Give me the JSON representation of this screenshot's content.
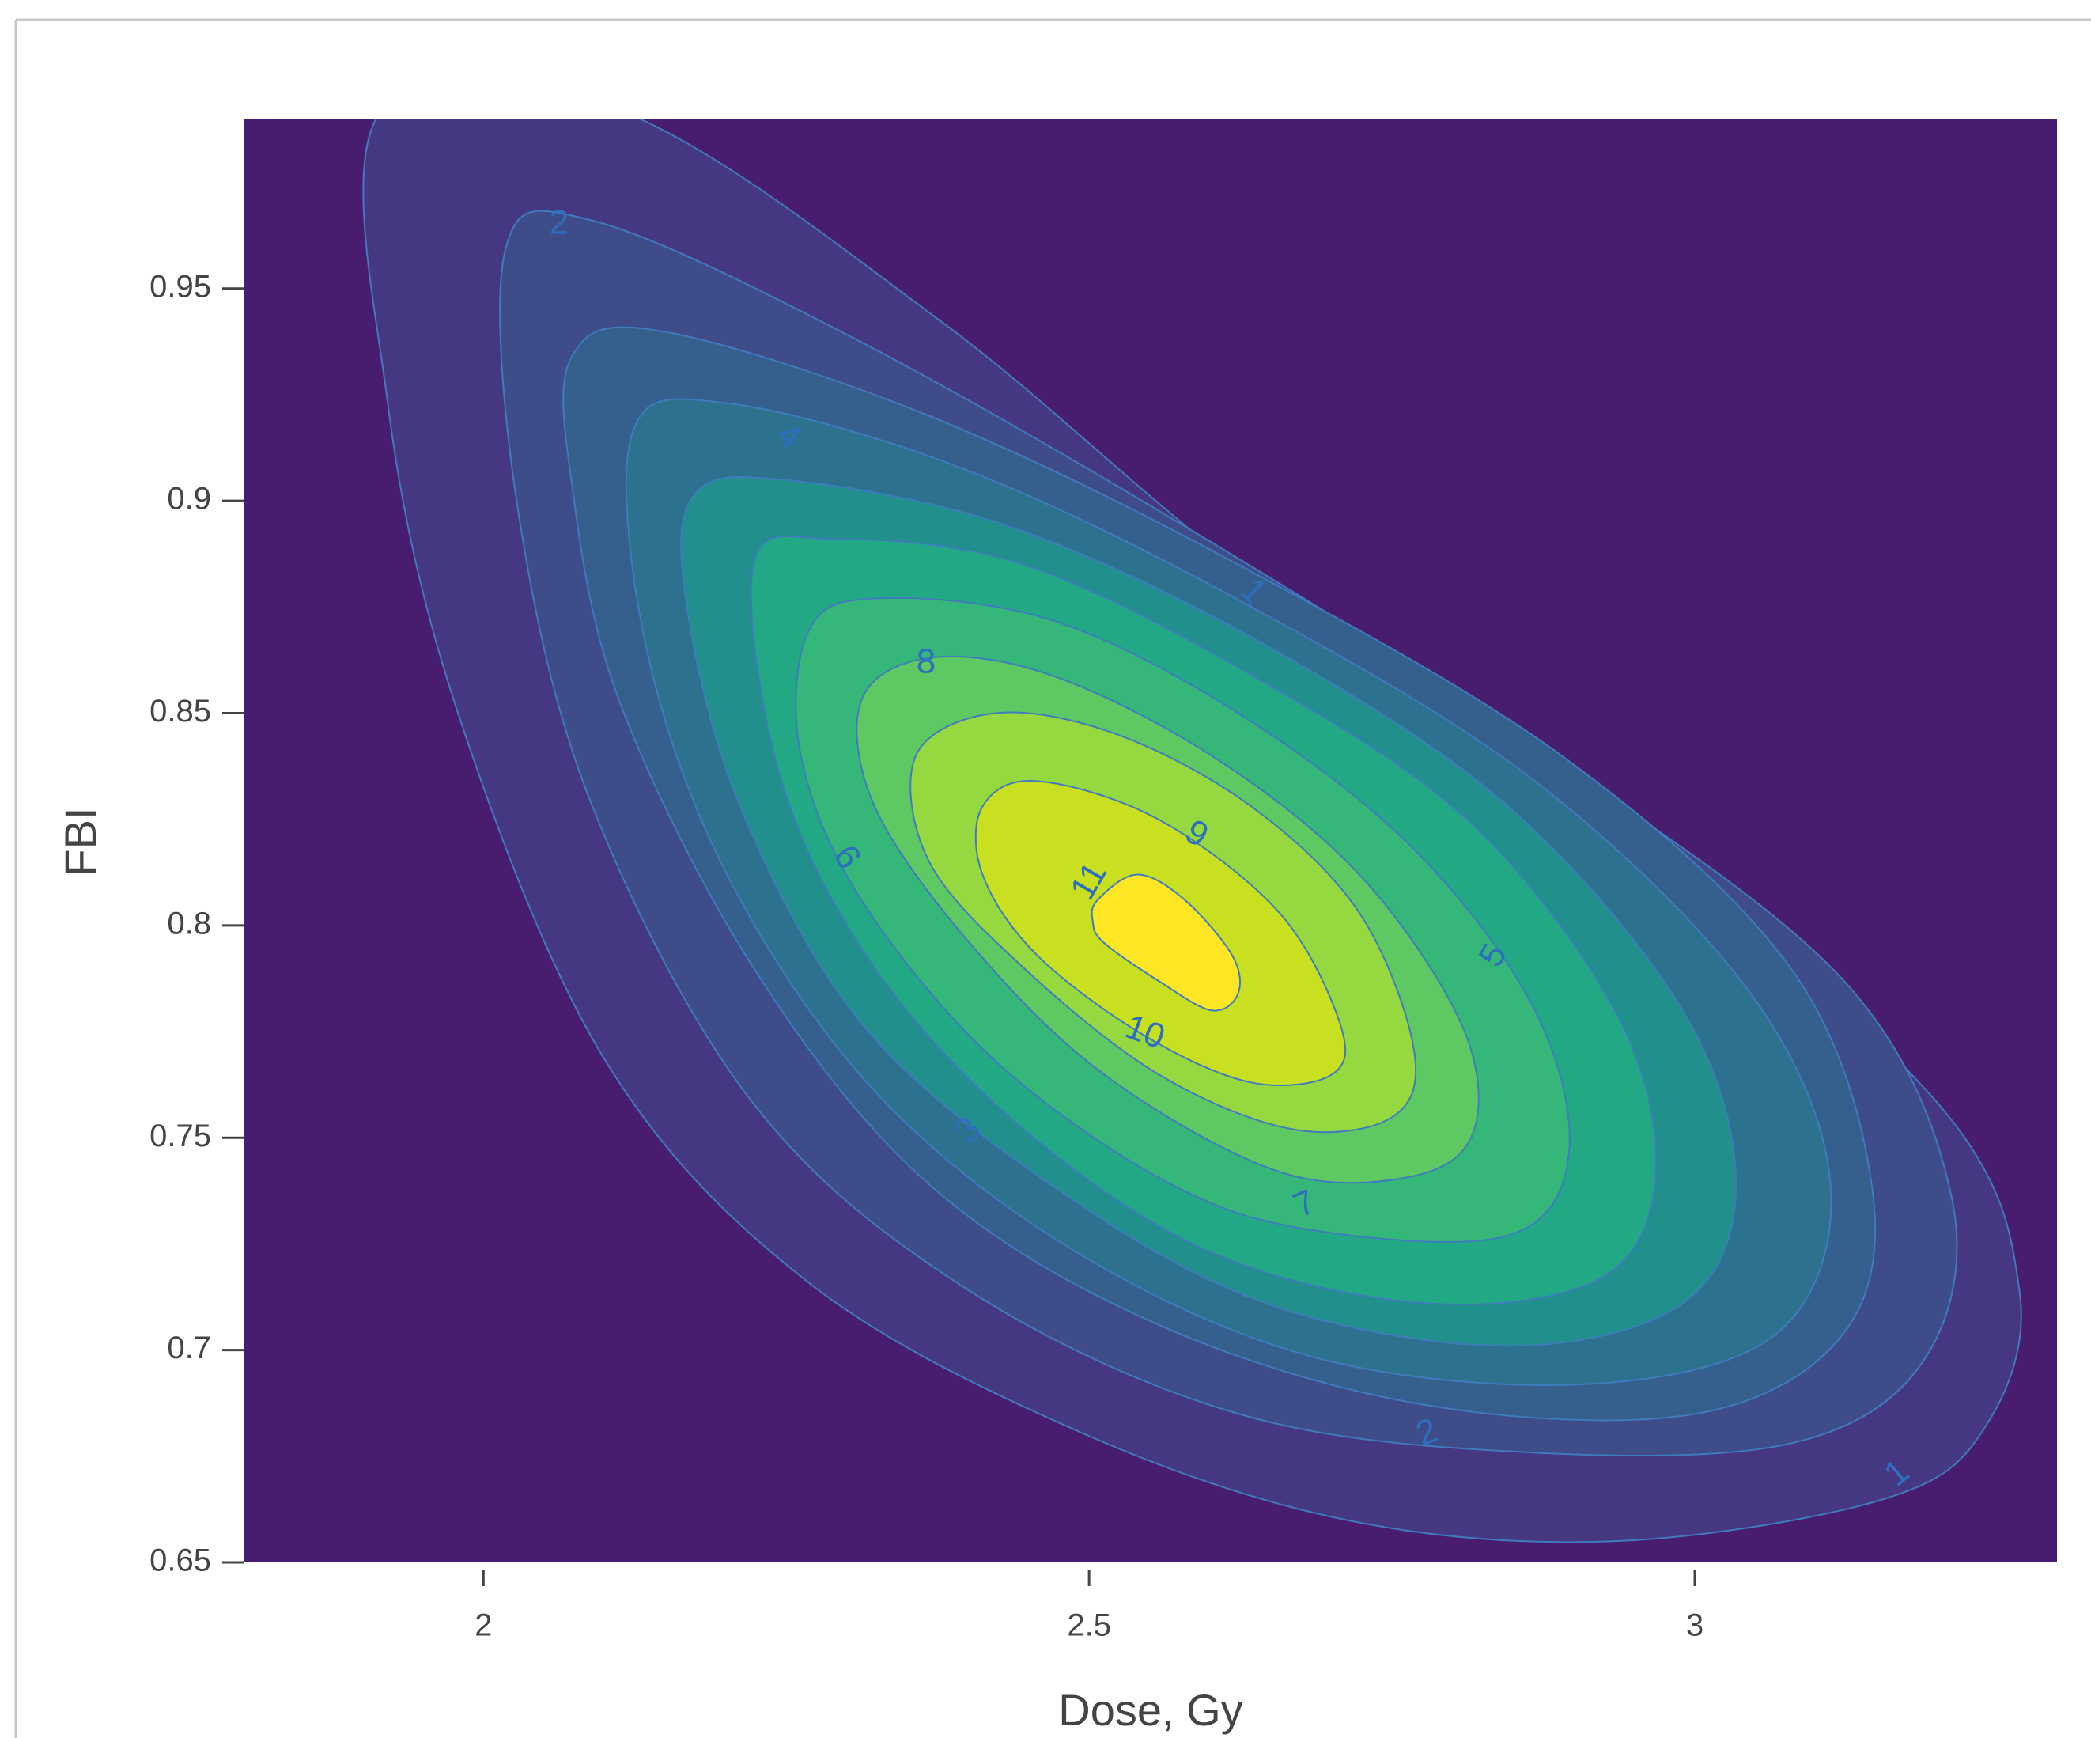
{
  "chart_data": {
    "type": "contour",
    "x_label": "Dose, Gy",
    "y_label": "FBI",
    "xlim": [
      1.802,
      3.299
    ],
    "ylim": [
      0.65,
      0.99
    ],
    "xticks": [
      2,
      2.5,
      3
    ],
    "yticks": [
      0.65,
      0.7,
      0.75,
      0.8,
      0.85,
      0.9,
      0.95
    ],
    "background": "#481d6f",
    "line_color": "#3f7bbd",
    "label_color": "#2e6fbd",
    "contours": [
      {
        "level": 1,
        "color": "#453781",
        "x": [
          1.916,
          2.112,
          2.379,
          2.634,
          2.934,
          3.201,
          3.268,
          3.24,
          3.157,
          2.934,
          2.712,
          2.49,
          2.268,
          2.101,
          1.979,
          1.921
        ],
        "y": [
          0.992,
          0.992,
          0.942,
          0.882,
          0.825,
          0.758,
          0.714,
          0.682,
          0.665,
          0.655,
          0.66,
          0.681,
          0.716,
          0.768,
          0.85,
          0.923
        ]
      },
      {
        "level": 2,
        "color": "#3e4c8a",
        "x": [
          2.018,
          2.09,
          2.301,
          2.579,
          2.879,
          3.123,
          3.212,
          3.19,
          3.079,
          2.857,
          2.623,
          2.401,
          2.223,
          2.09,
          2.029
        ],
        "y": [
          0.959,
          0.966,
          0.939,
          0.894,
          0.84,
          0.787,
          0.736,
          0.698,
          0.678,
          0.676,
          0.685,
          0.714,
          0.758,
          0.828,
          0.897
        ]
      },
      {
        "level": 3,
        "color": "#35608d",
        "x": [
          2.073,
          2.146,
          2.368,
          2.623,
          2.89,
          3.079,
          3.146,
          3.123,
          3.001,
          2.779,
          2.557,
          2.368,
          2.223,
          2.112,
          2.073
        ],
        "y": [
          0.934,
          0.94,
          0.92,
          0.885,
          0.84,
          0.79,
          0.739,
          0.704,
          0.685,
          0.687,
          0.706,
          0.739,
          0.79,
          0.853,
          0.904
        ]
      },
      {
        "level": 4,
        "color": "#2c728e",
        "x": [
          2.123,
          2.201,
          2.401,
          2.634,
          2.868,
          3.046,
          3.112,
          3.068,
          2.912,
          2.69,
          2.49,
          2.323,
          2.201,
          2.134
        ],
        "y": [
          0.916,
          0.923,
          0.907,
          0.875,
          0.834,
          0.784,
          0.739,
          0.704,
          0.692,
          0.698,
          0.723,
          0.761,
          0.812,
          0.866
        ]
      },
      {
        "level": 5,
        "color": "#21908d",
        "x": [
          2.173,
          2.246,
          2.434,
          2.646,
          2.846,
          2.99,
          3.034,
          2.99,
          2.846,
          2.646,
          2.468,
          2.312,
          2.212,
          2.168
        ],
        "y": [
          0.901,
          0.905,
          0.894,
          0.866,
          0.828,
          0.78,
          0.739,
          0.711,
          0.701,
          0.711,
          0.739,
          0.777,
          0.828,
          0.875
        ]
      },
      {
        "level": 6,
        "color": "#22a884",
        "x": [
          2.223,
          2.29,
          2.446,
          2.634,
          2.812,
          2.934,
          2.968,
          2.923,
          2.779,
          2.601,
          2.446,
          2.323,
          2.246
        ],
        "y": [
          0.885,
          0.891,
          0.885,
          0.859,
          0.825,
          0.78,
          0.742,
          0.717,
          0.711,
          0.723,
          0.752,
          0.79,
          0.834
        ]
      },
      {
        "level": 7,
        "color": "#35b779",
        "x": [
          2.268,
          2.323,
          2.468,
          2.623,
          2.768,
          2.868,
          2.896,
          2.846,
          2.69,
          2.568,
          2.423,
          2.312,
          2.262
        ],
        "y": [
          0.869,
          0.877,
          0.872,
          0.85,
          0.818,
          0.78,
          0.746,
          0.727,
          0.728,
          0.739,
          0.768,
          0.806,
          0.84
        ]
      },
      {
        "level": 8,
        "color": "#5ec962",
        "x": [
          2.312,
          2.368,
          2.468,
          2.601,
          2.723,
          2.807,
          2.818,
          2.768,
          2.657,
          2.512,
          2.401,
          2.323
        ],
        "y": [
          0.853,
          0.863,
          0.859,
          0.84,
          0.812,
          0.777,
          0.752,
          0.741,
          0.742,
          0.765,
          0.796,
          0.828
        ]
      },
      {
        "level": 9,
        "color": "#95d840",
        "x": [
          2.357,
          2.423,
          2.523,
          2.634,
          2.723,
          2.768,
          2.751,
          2.668,
          2.557,
          2.446,
          2.368
        ],
        "y": [
          0.84,
          0.85,
          0.845,
          0.828,
          0.803,
          0.771,
          0.755,
          0.752,
          0.765,
          0.79,
          0.815
        ]
      },
      {
        "level": 10,
        "color": "#c8e020",
        "x": [
          2.412,
          2.457,
          2.557,
          2.657,
          2.707,
          2.701,
          2.634,
          2.546,
          2.457,
          2.412
        ],
        "y": [
          0.828,
          0.834,
          0.825,
          0.803,
          0.777,
          0.765,
          0.763,
          0.774,
          0.793,
          0.812
        ]
      },
      {
        "level": 11,
        "color": "#fde725",
        "x": [
          2.507,
          2.54,
          2.579,
          2.618,
          2.623,
          2.601,
          2.557,
          2.512,
          2.503
        ],
        "y": [
          0.806,
          0.812,
          0.806,
          0.793,
          0.784,
          0.78,
          0.787,
          0.796,
          0.801
        ]
      }
    ]
  }
}
